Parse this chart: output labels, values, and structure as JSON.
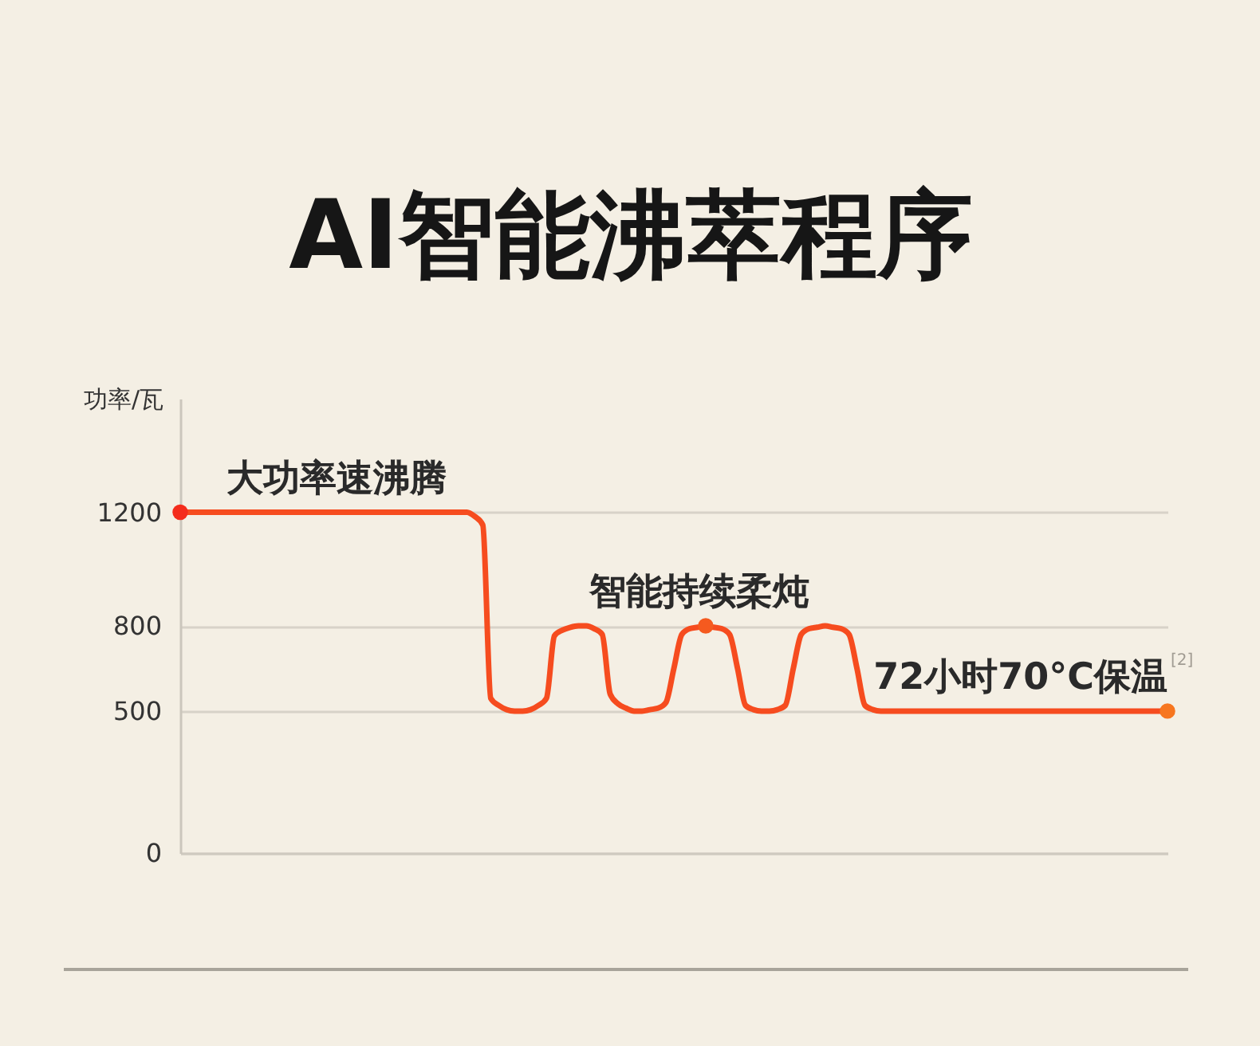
{
  "chart_data": {
    "type": "line",
    "title": "AI智能沸萃程序",
    "ylabel": "功率/瓦",
    "categories": [
      null,
      null,
      null,
      null,
      null,
      null,
      null,
      null,
      null,
      null,
      null,
      null,
      null,
      null,
      null,
      null,
      null,
      null,
      null,
      null,
      null,
      null,
      null,
      null,
      null,
      null,
      null,
      null,
      null,
      null,
      null,
      null,
      null,
      null,
      null,
      null,
      null,
      null,
      null,
      null,
      null,
      null,
      null,
      null,
      null,
      null,
      null,
      null,
      null,
      null,
      null,
      null,
      null,
      null,
      null,
      null,
      null,
      null,
      null,
      null,
      null,
      null,
      null,
      null,
      null,
      null,
      null,
      null,
      null,
      null,
      null,
      null,
      null,
      null,
      null,
      null,
      null,
      null,
      null,
      null,
      null,
      null,
      null,
      null,
      null,
      null,
      null,
      null,
      null,
      null,
      null,
      null,
      null,
      null,
      null,
      null,
      null,
      null,
      null,
      null,
      null,
      null,
      null,
      null,
      null,
      null,
      null,
      null,
      null,
      null,
      null,
      null,
      null,
      null,
      null,
      null,
      null,
      null,
      null,
      null,
      null,
      null,
      null,
      null,
      null
    ],
    "series": [
      {
        "color": "#f64c1f",
        "values": [
          1200,
          1200,
          1200,
          1200,
          1200,
          1200,
          1200,
          1200,
          1200,
          1200,
          1200,
          1200,
          1200,
          1200,
          1200,
          1200,
          1200,
          1200,
          1200,
          1200,
          1200,
          1200,
          1200,
          1200,
          1200,
          1200,
          1200,
          1200,
          1200,
          1200,
          1200,
          1200,
          1200,
          1200,
          1200,
          1200,
          1200,
          1185,
          1155,
          545,
          520,
          505,
          500,
          500,
          505,
          520,
          545,
          765,
          785,
          795,
          800,
          800,
          790,
          770,
          560,
          525,
          510,
          500,
          500,
          505,
          510,
          530,
          650,
          770,
          790,
          795,
          800,
          795,
          790,
          770,
          650,
          520,
          505,
          500,
          500,
          505,
          520,
          650,
          770,
          790,
          795,
          800,
          795,
          790,
          770,
          650,
          520,
          505,
          500,
          500,
          500,
          500,
          500,
          500,
          500,
          500,
          500,
          500,
          500,
          500,
          500,
          500,
          500,
          500,
          500,
          500,
          500,
          500,
          500,
          500,
          500,
          500,
          500,
          500,
          500,
          500,
          500,
          500,
          500,
          500,
          500,
          500,
          500,
          500,
          500
        ]
      },
      {
        "type": "scatter",
        "colors": [
          "#f42c1c",
          null,
          null,
          null,
          null,
          null,
          null,
          null,
          null,
          null,
          null,
          null,
          null,
          null,
          null,
          null,
          null,
          null,
          null,
          null,
          null,
          null,
          null,
          null,
          null,
          null,
          null,
          null,
          null,
          null,
          null,
          null,
          null,
          null,
          null,
          null,
          null,
          null,
          null,
          null,
          null,
          null,
          null,
          null,
          null,
          null,
          null,
          null,
          null,
          null,
          null,
          null,
          null,
          null,
          null,
          null,
          null,
          null,
          null,
          null,
          null,
          null,
          null,
          null,
          null,
          null,
          "#f55a1f",
          null,
          null,
          null,
          null,
          null,
          null,
          null,
          null,
          null,
          null,
          null,
          null,
          null,
          null,
          null,
          null,
          null,
          null,
          null,
          null,
          null,
          null,
          null,
          null,
          null,
          null,
          null,
          null,
          null,
          null,
          null,
          null,
          null,
          null,
          null,
          null,
          null,
          null,
          null,
          null,
          null,
          null,
          null,
          null,
          null,
          null,
          null,
          null,
          null,
          null,
          null,
          null,
          null,
          null,
          null,
          null,
          null,
          "#f7761f"
        ],
        "values": [
          1200,
          null,
          null,
          null,
          null,
          null,
          null,
          null,
          null,
          null,
          null,
          null,
          null,
          null,
          null,
          null,
          null,
          null,
          null,
          null,
          null,
          null,
          null,
          null,
          null,
          null,
          null,
          null,
          null,
          null,
          null,
          null,
          null,
          null,
          null,
          null,
          null,
          null,
          null,
          null,
          null,
          null,
          null,
          null,
          null,
          null,
          null,
          null,
          null,
          null,
          null,
          null,
          null,
          null,
          null,
          null,
          null,
          null,
          null,
          null,
          null,
          null,
          null,
          null,
          null,
          null,
          800,
          null,
          null,
          null,
          null,
          null,
          null,
          null,
          null,
          null,
          null,
          null,
          null,
          null,
          null,
          null,
          null,
          null,
          null,
          null,
          null,
          null,
          null,
          null,
          null,
          null,
          null,
          null,
          null,
          null,
          null,
          null,
          null,
          null,
          null,
          null,
          null,
          null,
          null,
          null,
          null,
          null,
          null,
          null,
          null,
          null,
          null,
          null,
          null,
          null,
          null,
          null,
          null,
          null,
          null,
          null,
          null,
          null,
          500
        ]
      }
    ],
    "ylim": [
      0,
      1600
    ],
    "yticks": [
      0,
      500,
      800,
      1200
    ],
    "grid": "y",
    "tick_labels": "y",
    "annotations": [
      {
        "text": "大功率速沸腾",
        "y": 1200
      },
      {
        "text": "智能持续柔炖",
        "y": 800
      },
      {
        "text": "72小时70°C保温$^{[2]}$",
        "y": 500
      }
    ]
  }
}
